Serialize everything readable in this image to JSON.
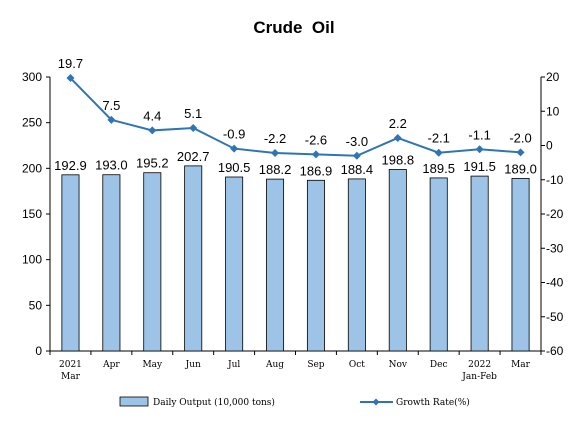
{
  "chart_data": {
    "type": "bar",
    "title": "Crude  Oil",
    "categories": [
      [
        "2021",
        "Mar"
      ],
      [
        "Apr"
      ],
      [
        "May"
      ],
      [
        "Jun"
      ],
      [
        "Jul"
      ],
      [
        "Aug"
      ],
      [
        "Sep"
      ],
      [
        "Oct"
      ],
      [
        "Nov"
      ],
      [
        "Dec"
      ],
      [
        "2022",
        "Jan-Feb"
      ],
      [
        "Mar"
      ]
    ],
    "series": [
      {
        "name": "Daily Output (10,000 tons)",
        "type": "bar",
        "axis": "left",
        "color": "#9DC3E6",
        "values": [
          192.9,
          193.0,
          195.2,
          202.7,
          190.5,
          188.2,
          186.9,
          188.4,
          198.8,
          189.5,
          191.5,
          189.0
        ],
        "labels": [
          "192.9",
          "193.0",
          "195.2",
          "202.7",
          "190.5",
          "188.2",
          "186.9",
          "188.4",
          "198.8",
          "189.5",
          "191.5",
          "189.0"
        ]
      },
      {
        "name": "Growth Rate(%)",
        "type": "line",
        "axis": "right",
        "color": "#2E75B6",
        "values": [
          19.7,
          7.5,
          4.4,
          5.1,
          -0.9,
          -2.2,
          -2.6,
          -3.0,
          2.2,
          -2.1,
          -1.1,
          -2.0
        ],
        "labels": [
          "19.7",
          "7.5",
          "4.4",
          "5.1",
          "-0.9",
          "-2.2",
          "-2.6",
          "-3.0",
          "2.2",
          "-2.1",
          "-1.1",
          "-2.0"
        ]
      }
    ],
    "y_left": {
      "min": 0,
      "max": 300,
      "ticks": [
        "0",
        "50",
        "100",
        "150",
        "200",
        "250",
        "300"
      ]
    },
    "y_right": {
      "min": -60,
      "max": 20,
      "ticks": [
        "-60",
        "-50",
        "-40",
        "-30",
        "-20",
        "-10",
        "0",
        "10",
        "20"
      ]
    },
    "grid": false,
    "legend_position": "bottom"
  }
}
